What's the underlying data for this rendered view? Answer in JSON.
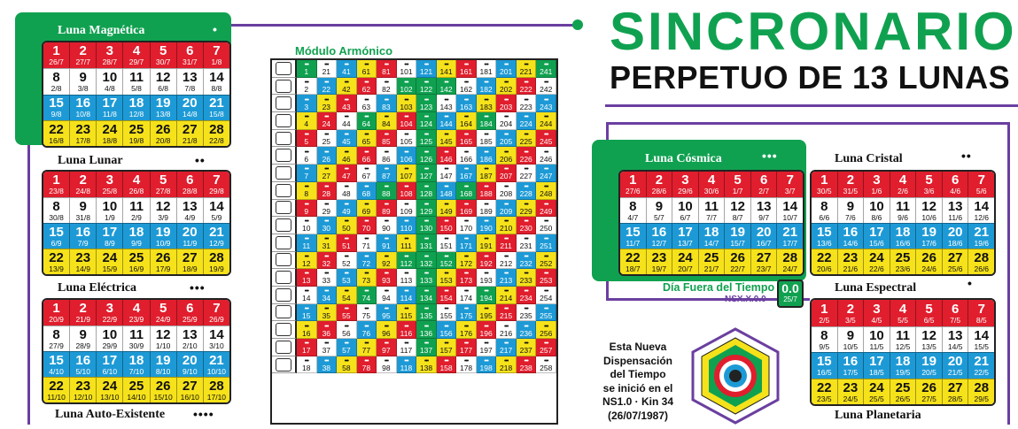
{
  "title": {
    "line1": "SINCRONARIO",
    "line2": "PERPETUO DE 13 LUNAS"
  },
  "colors": {
    "green": "#10a150",
    "red": "#e01e2d",
    "blue": "#1d9ad6",
    "yellow": "#f6e21a",
    "purple": "#6b3fa0"
  },
  "moons": [
    {
      "name": "Luna Magnética",
      "glyph": "•",
      "rows": [
        [
          [
            "1",
            "26/7"
          ],
          [
            "2",
            "27/7"
          ],
          [
            "3",
            "28/7"
          ],
          [
            "4",
            "29/7"
          ],
          [
            "5",
            "30/7"
          ],
          [
            "6",
            "31/7"
          ],
          [
            "7",
            "1/8"
          ]
        ],
        [
          [
            "8",
            "2/8"
          ],
          [
            "9",
            "3/8"
          ],
          [
            "10",
            "4/8"
          ],
          [
            "11",
            "5/8"
          ],
          [
            "12",
            "6/8"
          ],
          [
            "13",
            "7/8"
          ],
          [
            "14",
            "8/8"
          ]
        ],
        [
          [
            "15",
            "9/8"
          ],
          [
            "16",
            "10/8"
          ],
          [
            "17",
            "11/8"
          ],
          [
            "18",
            "12/8"
          ],
          [
            "19",
            "13/8"
          ],
          [
            "20",
            "14/8"
          ],
          [
            "21",
            "15/8"
          ]
        ],
        [
          [
            "22",
            "16/8"
          ],
          [
            "23",
            "17/8"
          ],
          [
            "24",
            "18/8"
          ],
          [
            "25",
            "19/8"
          ],
          [
            "26",
            "20/8"
          ],
          [
            "27",
            "21/8"
          ],
          [
            "28",
            "22/8"
          ]
        ]
      ]
    },
    {
      "name": "Luna Lunar",
      "glyph": "••",
      "rows": [
        [
          [
            "1",
            "23/8"
          ],
          [
            "2",
            "24/8"
          ],
          [
            "3",
            "25/8"
          ],
          [
            "4",
            "26/8"
          ],
          [
            "5",
            "27/8"
          ],
          [
            "6",
            "28/8"
          ],
          [
            "7",
            "29/8"
          ]
        ],
        [
          [
            "8",
            "30/8"
          ],
          [
            "9",
            "31/8"
          ],
          [
            "10",
            "1/9"
          ],
          [
            "11",
            "2/9"
          ],
          [
            "12",
            "3/9"
          ],
          [
            "13",
            "4/9"
          ],
          [
            "14",
            "5/9"
          ]
        ],
        [
          [
            "15",
            "6/9"
          ],
          [
            "16",
            "7/9"
          ],
          [
            "17",
            "8/9"
          ],
          [
            "18",
            "9/9"
          ],
          [
            "19",
            "10/9"
          ],
          [
            "20",
            "11/9"
          ],
          [
            "21",
            "12/9"
          ]
        ],
        [
          [
            "22",
            "13/9"
          ],
          [
            "23",
            "14/9"
          ],
          [
            "24",
            "15/9"
          ],
          [
            "25",
            "16/9"
          ],
          [
            "26",
            "17/9"
          ],
          [
            "27",
            "18/9"
          ],
          [
            "28",
            "19/9"
          ]
        ]
      ]
    },
    {
      "name": "Luna Eléctrica",
      "glyph": "•••",
      "rows": [
        [
          [
            "1",
            "20/9"
          ],
          [
            "2",
            "21/9"
          ],
          [
            "3",
            "22/9"
          ],
          [
            "4",
            "23/9"
          ],
          [
            "5",
            "24/9"
          ],
          [
            "6",
            "25/9"
          ],
          [
            "7",
            "26/9"
          ]
        ],
        [
          [
            "8",
            "27/9"
          ],
          [
            "9",
            "28/9"
          ],
          [
            "10",
            "29/9"
          ],
          [
            "11",
            "30/9"
          ],
          [
            "12",
            "1/10"
          ],
          [
            "13",
            "2/10"
          ],
          [
            "14",
            "3/10"
          ]
        ],
        [
          [
            "15",
            "4/10"
          ],
          [
            "16",
            "5/10"
          ],
          [
            "17",
            "6/10"
          ],
          [
            "18",
            "7/10"
          ],
          [
            "19",
            "8/10"
          ],
          [
            "20",
            "9/10"
          ],
          [
            "21",
            "10/10"
          ]
        ],
        [
          [
            "22",
            "11/10"
          ],
          [
            "23",
            "12/10"
          ],
          [
            "24",
            "13/10"
          ],
          [
            "25",
            "14/10"
          ],
          [
            "26",
            "15/10"
          ],
          [
            "27",
            "16/10"
          ],
          [
            "28",
            "17/10"
          ]
        ]
      ]
    },
    {
      "name": "Luna Auto-Existente",
      "glyph": "••••"
    },
    {
      "name": "Luna Cósmica",
      "glyph": "•••",
      "rows": [
        [
          [
            "1",
            "27/6"
          ],
          [
            "2",
            "28/6"
          ],
          [
            "3",
            "29/6"
          ],
          [
            "4",
            "30/6"
          ],
          [
            "5",
            "1/7"
          ],
          [
            "6",
            "2/7"
          ],
          [
            "7",
            "3/7"
          ]
        ],
        [
          [
            "8",
            "4/7"
          ],
          [
            "9",
            "5/7"
          ],
          [
            "10",
            "6/7"
          ],
          [
            "11",
            "7/7"
          ],
          [
            "12",
            "8/7"
          ],
          [
            "13",
            "9/7"
          ],
          [
            "14",
            "10/7"
          ]
        ],
        [
          [
            "15",
            "11/7"
          ],
          [
            "16",
            "12/7"
          ],
          [
            "17",
            "13/7"
          ],
          [
            "18",
            "14/7"
          ],
          [
            "19",
            "15/7"
          ],
          [
            "20",
            "16/7"
          ],
          [
            "21",
            "17/7"
          ]
        ],
        [
          [
            "22",
            "18/7"
          ],
          [
            "23",
            "19/7"
          ],
          [
            "24",
            "20/7"
          ],
          [
            "25",
            "21/7"
          ],
          [
            "26",
            "22/7"
          ],
          [
            "27",
            "23/7"
          ],
          [
            "28",
            "24/7"
          ]
        ]
      ]
    },
    {
      "name": "Luna Cristal",
      "glyph": "••",
      "rows": [
        [
          [
            "1",
            "30/5"
          ],
          [
            "2",
            "31/5"
          ],
          [
            "3",
            "1/6"
          ],
          [
            "4",
            "2/6"
          ],
          [
            "5",
            "3/6"
          ],
          [
            "6",
            "4/6"
          ],
          [
            "7",
            "5/6"
          ]
        ],
        [
          [
            "8",
            "6/6"
          ],
          [
            "9",
            "7/6"
          ],
          [
            "10",
            "8/6"
          ],
          [
            "11",
            "9/6"
          ],
          [
            "12",
            "10/6"
          ],
          [
            "13",
            "11/6"
          ],
          [
            "14",
            "12/6"
          ]
        ],
        [
          [
            "15",
            "13/6"
          ],
          [
            "16",
            "14/6"
          ],
          [
            "17",
            "15/6"
          ],
          [
            "18",
            "16/6"
          ],
          [
            "19",
            "17/6"
          ],
          [
            "20",
            "18/6"
          ],
          [
            "21",
            "19/6"
          ]
        ],
        [
          [
            "22",
            "20/6"
          ],
          [
            "23",
            "21/6"
          ],
          [
            "24",
            "22/6"
          ],
          [
            "25",
            "23/6"
          ],
          [
            "26",
            "24/6"
          ],
          [
            "27",
            "25/6"
          ],
          [
            "28",
            "26/6"
          ]
        ]
      ]
    },
    {
      "name": "Luna Espectral",
      "glyph": "•",
      "rows": [
        [
          [
            "1",
            "2/5"
          ],
          [
            "2",
            "3/5"
          ],
          [
            "3",
            "4/5"
          ],
          [
            "4",
            "5/5"
          ],
          [
            "5",
            "6/5"
          ],
          [
            "6",
            "7/5"
          ],
          [
            "7",
            "8/5"
          ]
        ],
        [
          [
            "8",
            "9/5"
          ],
          [
            "9",
            "10/5"
          ],
          [
            "10",
            "11/5"
          ],
          [
            "11",
            "12/5"
          ],
          [
            "12",
            "13/5"
          ],
          [
            "13",
            "14/5"
          ],
          [
            "14",
            "15/5"
          ]
        ],
        [
          [
            "15",
            "16/5"
          ],
          [
            "16",
            "17/5"
          ],
          [
            "17",
            "18/5"
          ],
          [
            "18",
            "19/5"
          ],
          [
            "19",
            "20/5"
          ],
          [
            "20",
            "21/5"
          ],
          [
            "21",
            "22/5"
          ]
        ],
        [
          [
            "22",
            "23/5"
          ],
          [
            "23",
            "24/5"
          ],
          [
            "24",
            "25/5"
          ],
          [
            "25",
            "26/5"
          ],
          [
            "26",
            "27/5"
          ],
          [
            "27",
            "28/5"
          ],
          [
            "28",
            "29/5"
          ]
        ]
      ]
    },
    {
      "name": "Luna Planetaria",
      "glyph": ""
    }
  ],
  "modulo": {
    "title": "Módulo Armónico",
    "rows": [
      [
        "1",
        "21",
        "41",
        "61",
        "81",
        "101",
        "121",
        "141",
        "161",
        "181",
        "201",
        "221",
        "241"
      ],
      [
        "2",
        "22",
        "42",
        "62",
        "82",
        "102",
        "122",
        "142",
        "162",
        "182",
        "202",
        "222",
        "242"
      ],
      [
        "3",
        "23",
        "43",
        "63",
        "83",
        "103",
        "123",
        "143",
        "163",
        "183",
        "203",
        "223",
        "243"
      ],
      [
        "4",
        "24",
        "44",
        "64",
        "84",
        "104",
        "124",
        "144",
        "164",
        "184",
        "204",
        "224",
        "244"
      ],
      [
        "5",
        "25",
        "45",
        "65",
        "85",
        "105",
        "125",
        "145",
        "165",
        "185",
        "205",
        "225",
        "245"
      ],
      [
        "6",
        "26",
        "46",
        "66",
        "86",
        "106",
        "126",
        "146",
        "166",
        "186",
        "206",
        "226",
        "246"
      ],
      [
        "7",
        "27",
        "47",
        "67",
        "87",
        "107",
        "127",
        "147",
        "167",
        "187",
        "207",
        "227",
        "247"
      ],
      [
        "8",
        "28",
        "48",
        "68",
        "88",
        "108",
        "128",
        "148",
        "168",
        "188",
        "208",
        "228",
        "248"
      ],
      [
        "9",
        "29",
        "49",
        "69",
        "89",
        "109",
        "129",
        "149",
        "169",
        "189",
        "209",
        "229",
        "249"
      ],
      [
        "10",
        "30",
        "50",
        "70",
        "90",
        "110",
        "130",
        "150",
        "170",
        "190",
        "210",
        "230",
        "250"
      ],
      [
        "11",
        "31",
        "51",
        "71",
        "91",
        "111",
        "131",
        "151",
        "171",
        "191",
        "211",
        "231",
        "251"
      ],
      [
        "12",
        "32",
        "52",
        "72",
        "92",
        "112",
        "132",
        "152",
        "172",
        "192",
        "212",
        "232",
        "252"
      ],
      [
        "13",
        "33",
        "53",
        "73",
        "93",
        "113",
        "133",
        "153",
        "173",
        "193",
        "213",
        "233",
        "253"
      ],
      [
        "14",
        "34",
        "54",
        "74",
        "94",
        "114",
        "134",
        "154",
        "174",
        "194",
        "214",
        "234",
        "254"
      ],
      [
        "15",
        "35",
        "55",
        "75",
        "95",
        "115",
        "135",
        "155",
        "175",
        "195",
        "215",
        "235",
        "255"
      ],
      [
        "16",
        "36",
        "56",
        "76",
        "96",
        "116",
        "136",
        "156",
        "176",
        "196",
        "216",
        "236",
        "256"
      ],
      [
        "17",
        "37",
        "57",
        "77",
        "97",
        "117",
        "137",
        "157",
        "177",
        "197",
        "217",
        "237",
        "257"
      ],
      [
        "18",
        "38",
        "58",
        "78",
        "98",
        "118",
        "138",
        "158",
        "178",
        "198",
        "218",
        "238",
        "258"
      ]
    ]
  },
  "dia_fuera": {
    "label": "Día Fuera del Tiempo",
    "code": "NSX.X.0.0",
    "value": "0.0",
    "date": "25/7"
  },
  "note": {
    "lines": [
      "Esta Nueva",
      "Dispensación",
      "del Tiempo",
      "se inició en el",
      "NS1.0 · Kin 34",
      "(26/07/1987)"
    ]
  }
}
